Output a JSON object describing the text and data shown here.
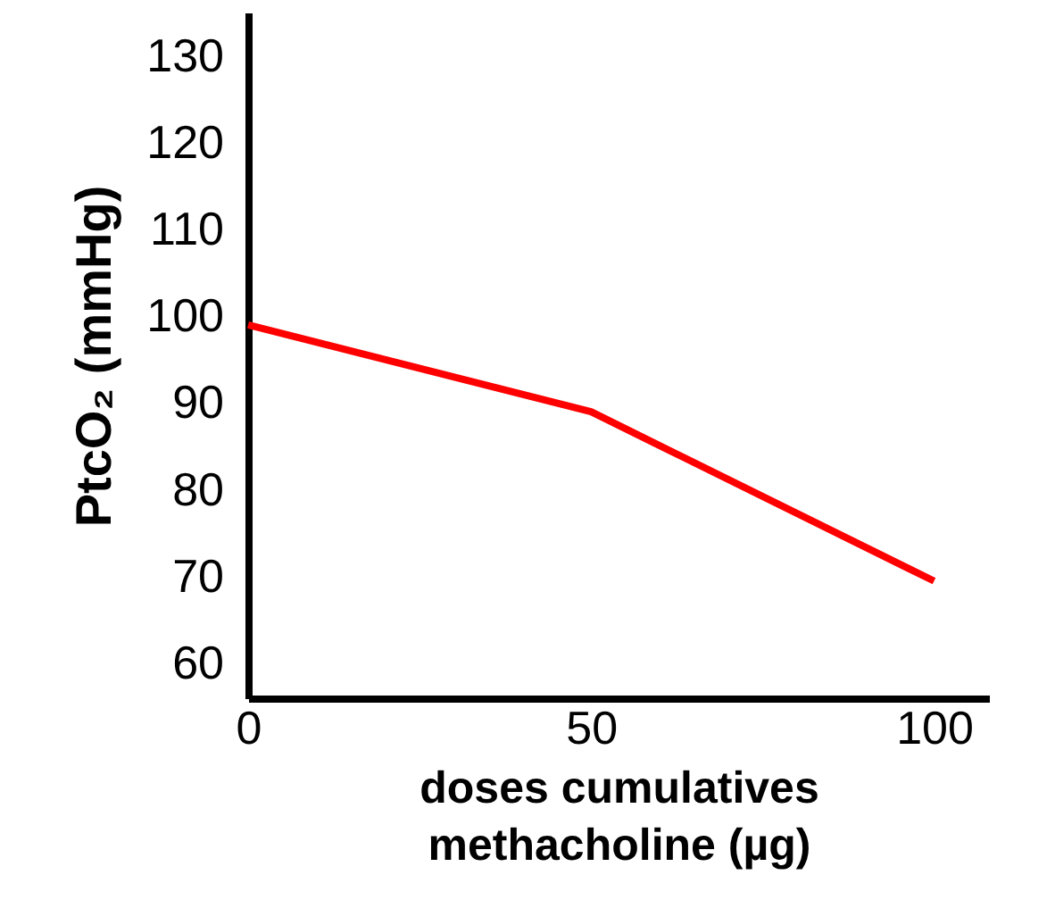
{
  "chart_data": {
    "type": "line",
    "xlabel": "doses cumulatives\nmethacholine (µg)",
    "ylabel": "PtcO₂ (mmHg)",
    "x": [
      0,
      50,
      100
    ],
    "series": [
      {
        "color": "#ff0000",
        "values": [
          99,
          89,
          69.5
        ]
      }
    ],
    "xlim": [
      0,
      108
    ],
    "xticks": [
      0,
      50,
      100
    ],
    "ylim": [
      56,
      135
    ],
    "yticks": [
      60,
      70,
      80,
      90,
      100,
      110,
      120,
      130
    ],
    "grid": false,
    "marker": "none",
    "line_style": "solid"
  }
}
